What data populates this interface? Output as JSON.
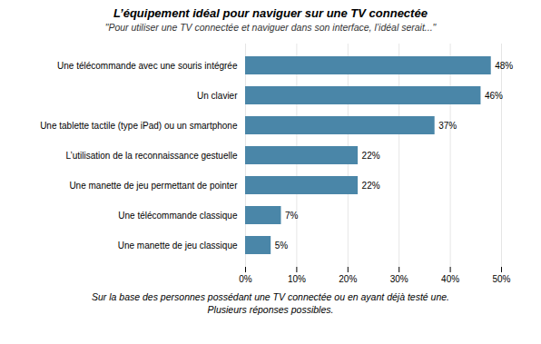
{
  "chart_data": {
    "type": "bar",
    "orientation": "horizontal",
    "title": "L’équipement idéal pour naviguer sur une TV connectée",
    "subtitle": "\"Pour utiliser une TV connectée et naviguer dans son interface, l’idéal serait...\"",
    "annotations": [
      "Sur la base des personnes possédant une TV connectée ou en ayant déjà testé une.",
      "Plusieurs réponses possibles."
    ],
    "categories": [
      "Une manette de jeu classique",
      "Une télécommande classique",
      "Une manette de jeu permettant de pointer",
      "L’utilisation de la reconnaissance gestuelle",
      "Une tablette tactile (type iPad) ou un smartphone",
      "Un clavier",
      "Une télécommande avec une souris intégrée"
    ],
    "values": [
      5,
      7,
      22,
      22,
      37,
      46,
      48
    ],
    "value_labels": [
      "5%",
      "7%",
      "22%",
      "22%",
      "37%",
      "46%",
      "48%"
    ],
    "data_labels": true,
    "color": "#4a86a8",
    "xlim": [
      0,
      50
    ],
    "xticks": [
      {
        "value": 0,
        "label": "0%"
      },
      {
        "value": 10,
        "label": "10%"
      },
      {
        "value": 20,
        "label": "20%"
      },
      {
        "value": 30,
        "label": "30%"
      },
      {
        "value": 40,
        "label": "40%"
      },
      {
        "value": 50,
        "label": "50%"
      }
    ],
    "grid": true
  }
}
